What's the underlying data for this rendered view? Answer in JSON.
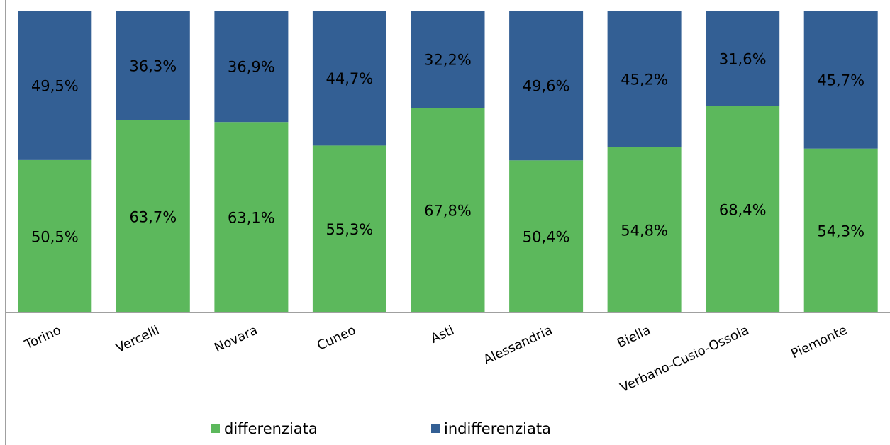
{
  "chart_data": {
    "type": "bar",
    "stacked": "percent",
    "categories": [
      "Torino",
      "Vercelli",
      "Novara",
      "Cuneo",
      "Asti",
      "Alessandria",
      "Biella",
      "Verbano-Cusio-Ossola",
      "Piemonte"
    ],
    "series": [
      {
        "name": "differenziata",
        "color": "#5cb85c",
        "values": [
          50.5,
          63.7,
          63.1,
          55.3,
          67.8,
          50.4,
          54.8,
          68.4,
          54.3
        ],
        "labels": [
          "50,5%",
          "63,7%",
          "63,1%",
          "55,3%",
          "67,8%",
          "50,4%",
          "54,8%",
          "68,4%",
          "54,3%"
        ]
      },
      {
        "name": "indifferenziata",
        "color": "#335f94",
        "values": [
          49.5,
          36.3,
          36.9,
          44.7,
          32.2,
          49.6,
          45.2,
          31.6,
          45.7
        ],
        "labels": [
          "49,5%",
          "36,3%",
          "36,9%",
          "44,7%",
          "32,2%",
          "49,6%",
          "45,2%",
          "31,6%",
          "45,7%"
        ]
      }
    ],
    "ylim": [
      0,
      100
    ],
    "grid": false,
    "legend_position": "bottom"
  }
}
